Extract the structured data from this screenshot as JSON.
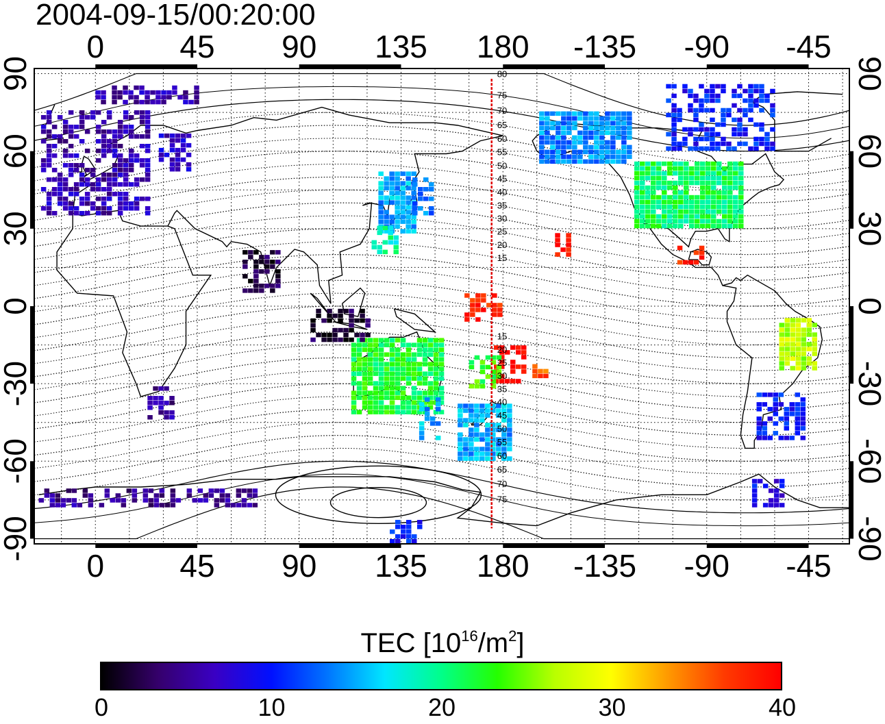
{
  "header": {
    "timestamp": "2004-09-15/00:20:00"
  },
  "map": {
    "projection": "equirectangular",
    "lon_range": [
      -27,
      333
    ],
    "lat_range": [
      -92,
      92
    ],
    "top_lon_ticks": [
      "0",
      "45",
      "90",
      "135",
      "180",
      "-135",
      "-90",
      "-45"
    ],
    "bottom_lon_ticks": [
      "0",
      "45",
      "90",
      "135",
      "180",
      "-135",
      "-90",
      "-45"
    ],
    "left_lat_ticks": [
      "90",
      "60",
      "30",
      "0",
      "-30",
      "-60",
      "-90"
    ],
    "right_lat_ticks": [
      "90",
      "60",
      "30",
      "0",
      "-30",
      "-60",
      "-90"
    ],
    "red_meridian_lon": 175,
    "magnetic_lat_labels_north": [
      "80",
      "75",
      "70",
      "65",
      "60",
      "55",
      "50",
      "45",
      "40",
      "35",
      "30",
      "25",
      "20",
      "15"
    ],
    "magnetic_lat_labels_south": [
      "15",
      "20",
      "25",
      "30",
      "35",
      "40",
      "45",
      "50",
      "55",
      "60",
      "65",
      "70",
      "75"
    ],
    "grid": "dotted every 15 degrees",
    "colors": {
      "meridian": "#e00000",
      "frame": "#000000",
      "coastline": "#000000"
    }
  },
  "colorbar": {
    "title_prefix": "TEC  [10",
    "title_exp": "16",
    "title_mid": "/m",
    "title_exp2": "2",
    "title_suffix": "]",
    "min": 0,
    "max": 40,
    "tick_labels": [
      "0",
      "10",
      "20",
      "30",
      "40"
    ],
    "colormap": [
      "#000000",
      "#35006b",
      "#3a00c4",
      "#0010ff",
      "#0075ff",
      "#00e6ff",
      "#00ff8a",
      "#25ff00",
      "#b9ff00",
      "#ffff00",
      "#ff9a00",
      "#ff3a00",
      "#ff0000"
    ]
  },
  "chart_data": {
    "type": "heatmap",
    "title": "2004-09-15/00:20:00",
    "xlabel": "",
    "ylabel": "",
    "colorbar_label": "TEC [10^16/m^2]",
    "value_range": [
      0,
      40
    ],
    "regions": [
      {
        "lon": [
          -24,
          22
        ],
        "lat": [
          35,
          75
        ],
        "tec": 6
      },
      {
        "lon": [
          28,
          42
        ],
        "lat": [
          52,
          65
        ],
        "tec": 7
      },
      {
        "lon": [
          0,
          44
        ],
        "lat": [
          78,
          85
        ],
        "tec": 6
      },
      {
        "lon": [
          125,
          140
        ],
        "lat": [
          28,
          52
        ],
        "tec": 15
      },
      {
        "lon": [
          140,
          148
        ],
        "lat": [
          35,
          48
        ],
        "tec": 13
      },
      {
        "lon": [
          122,
          134
        ],
        "lat": [
          20,
          30
        ],
        "tec": 19
      },
      {
        "lon": [
          196,
          236
        ],
        "lat": [
          55,
          75
        ],
        "tec": 14
      },
      {
        "lon": [
          238,
          284
        ],
        "lat": [
          30,
          55
        ],
        "tec": 21
      },
      {
        "lon": [
          252,
          300
        ],
        "lat": [
          60,
          85
        ],
        "tec": 10
      },
      {
        "lon": [
          203,
          210
        ],
        "lat": [
          19,
          27
        ],
        "tec": 39
      },
      {
        "lon": [
          257,
          268
        ],
        "lat": [
          16,
          23
        ],
        "tec": 38
      },
      {
        "lon": [
          163,
          178
        ],
        "lat": [
          -8,
          4
        ],
        "tec": 38
      },
      {
        "lon": [
          176,
          190
        ],
        "lat": [
          -30,
          -16
        ],
        "tec": 39
      },
      {
        "lon": [
          193,
          200
        ],
        "lat": [
          -28,
          -24
        ],
        "tec": 36
      },
      {
        "lon": [
          113,
          152
        ],
        "lat": [
          -42,
          -14
        ],
        "tec": 22
      },
      {
        "lon": [
          143,
          152
        ],
        "lat": [
          -52,
          -37
        ],
        "tec": 15
      },
      {
        "lon": [
          160,
          183
        ],
        "lat": [
          -60,
          -38
        ],
        "tec": 15
      },
      {
        "lon": [
          165,
          178
        ],
        "lat": [
          -32,
          -20
        ],
        "tec": 23
      },
      {
        "lon": [
          302,
          318
        ],
        "lat": [
          -25,
          -5
        ],
        "tec": 27
      },
      {
        "lon": [
          292,
          312
        ],
        "lat": [
          -52,
          -35
        ],
        "tec": 10
      },
      {
        "lon": [
          290,
          304
        ],
        "lat": [
          -78,
          -68
        ],
        "tec": 9
      },
      {
        "lon": [
          -25,
          70
        ],
        "lat": [
          -78,
          -72
        ],
        "tec": 5
      },
      {
        "lon": [
          130,
          144
        ],
        "lat": [
          -92,
          -84
        ],
        "tec": 10
      },
      {
        "lon": [
          23,
          35
        ],
        "lat": [
          -44,
          -32
        ],
        "tec": 5
      },
      {
        "lon": [
          95,
          120
        ],
        "lat": [
          -14,
          -2
        ],
        "tec": 2
      },
      {
        "lon": [
          65,
          80
        ],
        "lat": [
          5,
          20
        ],
        "tec": 2
      }
    ]
  }
}
